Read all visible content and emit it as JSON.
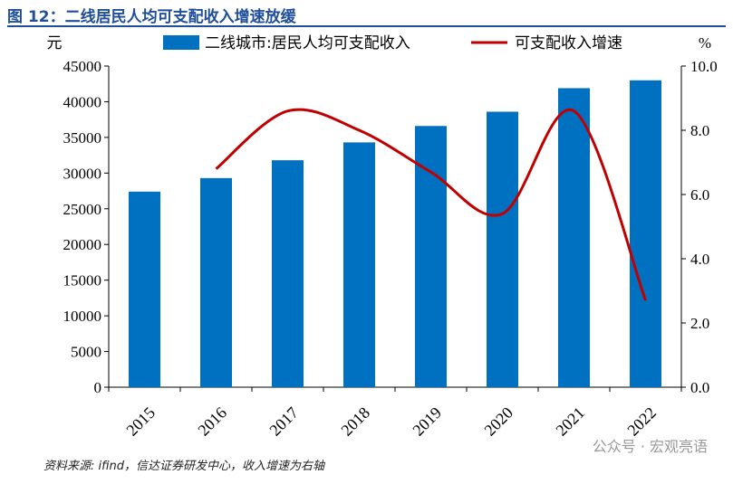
{
  "title": "图 12：二线居民人均可支配收入增速放缓",
  "source": "资料来源: ifind，信达证券研发中心，收入增速为右轴",
  "watermark": "公众号 · 宏观亮语",
  "chart_data": {
    "type": "bar+line",
    "categories": [
      "2015",
      "2016",
      "2017",
      "2018",
      "2019",
      "2020",
      "2021",
      "2022"
    ],
    "left_axis": {
      "unit": "元",
      "ylim": [
        0,
        45000
      ],
      "ticks": [
        "0",
        "5000",
        "10000",
        "15000",
        "20000",
        "25000",
        "30000",
        "35000",
        "40000",
        "45000"
      ]
    },
    "right_axis": {
      "unit": "%",
      "ylim": [
        0,
        10
      ],
      "ticks": [
        "0.0",
        "2.0",
        "4.0",
        "6.0",
        "8.0",
        "10.0"
      ]
    },
    "series": [
      {
        "name": "二线城市:居民人均可支配收入",
        "type": "bar",
        "axis": "left",
        "color": "#0070c0",
        "values": [
          27400,
          29300,
          31800,
          34300,
          36600,
          38600,
          41900,
          43000
        ]
      },
      {
        "name": "可支配收入增速",
        "type": "line",
        "axis": "right",
        "color": "#c00000",
        "values": [
          null,
          6.8,
          8.6,
          8.0,
          6.7,
          5.4,
          8.6,
          2.7
        ]
      }
    ],
    "legend": "top-center",
    "grid": false
  }
}
